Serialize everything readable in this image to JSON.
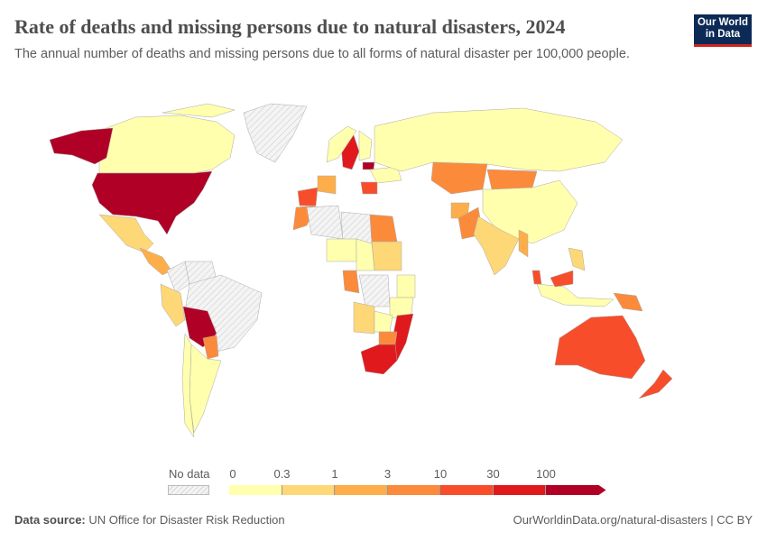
{
  "header": {
    "title": "Rate of deaths and missing persons due to natural disasters, 2024",
    "subtitle": "The annual number of deaths and missing persons due to all forms of natural disaster per 100,000 people.",
    "logo_text": "Our World in Data"
  },
  "legend": {
    "no_data_label": "No data",
    "ticks": [
      "0",
      "0.3",
      "1",
      "3",
      "10",
      "30",
      "100"
    ],
    "colors": [
      "#ffffad",
      "#fed777",
      "#fdae4a",
      "#fc8a3b",
      "#f84d2b",
      "#e01a1c",
      "#b10026"
    ],
    "no_data_color": "#eeeeee"
  },
  "map_data": {
    "bins": [
      "0–0.3",
      "0.3–1",
      "1–3",
      "3–10",
      "10–30",
      "30–100",
      ">100"
    ],
    "countries": [
      {
        "name": "Canada",
        "bin": 0
      },
      {
        "name": "Alaska (United States)",
        "bin": 6
      },
      {
        "name": "United States",
        "bin": 6
      },
      {
        "name": "Greenland",
        "bin": null
      },
      {
        "name": "Mexico",
        "bin": 1
      },
      {
        "name": "Central America",
        "bin": 2
      },
      {
        "name": "Colombia",
        "bin": null
      },
      {
        "name": "Venezuela",
        "bin": null
      },
      {
        "name": "Peru",
        "bin": 1
      },
      {
        "name": "Brazil",
        "bin": null
      },
      {
        "name": "Bolivia",
        "bin": 6
      },
      {
        "name": "Paraguay",
        "bin": 3
      },
      {
        "name": "Argentina",
        "bin": 0
      },
      {
        "name": "Chile",
        "bin": 0
      },
      {
        "name": "Sweden",
        "bin": 5
      },
      {
        "name": "Norway",
        "bin": 0
      },
      {
        "name": "Finland",
        "bin": 0
      },
      {
        "name": "Latvia",
        "bin": 6
      },
      {
        "name": "Spain",
        "bin": 4
      },
      {
        "name": "France",
        "bin": 2
      },
      {
        "name": "Romania",
        "bin": 4
      },
      {
        "name": "Ukraine",
        "bin": 0
      },
      {
        "name": "Russia",
        "bin": 0
      },
      {
        "name": "Kazakhstan",
        "bin": 3
      },
      {
        "name": "Mongolia",
        "bin": 3
      },
      {
        "name": "China",
        "bin": 0
      },
      {
        "name": "Afghanistan",
        "bin": 2
      },
      {
        "name": "Pakistan",
        "bin": 3
      },
      {
        "name": "India",
        "bin": 1
      },
      {
        "name": "Myanmar",
        "bin": 2
      },
      {
        "name": "Morocco",
        "bin": 3
      },
      {
        "name": "Algeria",
        "bin": null
      },
      {
        "name": "Libya",
        "bin": null
      },
      {
        "name": "Egypt",
        "bin": 3
      },
      {
        "name": "Sudan",
        "bin": 1
      },
      {
        "name": "Niger",
        "bin": 0
      },
      {
        "name": "Chad",
        "bin": 0
      },
      {
        "name": "Cameroon",
        "bin": 3
      },
      {
        "name": "DR Congo",
        "bin": null
      },
      {
        "name": "Kenya",
        "bin": 0
      },
      {
        "name": "Tanzania",
        "bin": 0
      },
      {
        "name": "Angola",
        "bin": 1
      },
      {
        "name": "Zambia",
        "bin": 0
      },
      {
        "name": "Mozambique",
        "bin": 5
      },
      {
        "name": "Zimbabwe",
        "bin": 3
      },
      {
        "name": "South Africa",
        "bin": 5
      },
      {
        "name": "Indonesia",
        "bin": 0
      },
      {
        "name": "Malaysia",
        "bin": 4
      },
      {
        "name": "Philippines",
        "bin": 1
      },
      {
        "name": "Papua New Guinea",
        "bin": 3
      },
      {
        "name": "Australia",
        "bin": 4
      },
      {
        "name": "New Zealand",
        "bin": 4
      }
    ]
  },
  "footer": {
    "source_label": "Data source:",
    "source": "UN Office for Disaster Risk Reduction",
    "url": "OurWorldinData.org/natural-disasters | CC BY"
  }
}
